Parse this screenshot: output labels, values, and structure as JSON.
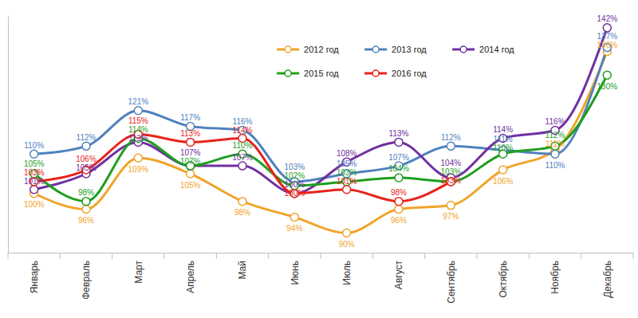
{
  "chart_data": {
    "type": "line",
    "categories": [
      "Январь",
      "Февраль",
      "Март",
      "Апрель",
      "Май",
      "Июнь",
      "Июль",
      "Август",
      "Сентябрь",
      "Октябрь",
      "Ноябрь",
      "Декабрь"
    ],
    "series": [
      {
        "name": "2012 год",
        "color": "#f0a42a",
        "values": [
          100,
          96,
          109,
          105,
          98,
          94,
          90,
          96,
          97,
          106,
          111,
          136
        ],
        "value_labels": [
          "100%",
          "96%",
          "109%",
          "105%",
          "98%",
          "94%",
          "90%",
          "96%",
          "97%",
          "106%",
          "111%",
          "136%"
        ]
      },
      {
        "name": "2013 год",
        "color": "#4f81bd",
        "values": [
          110,
          112,
          121,
          117,
          116,
          103,
          105,
          107,
          112,
          111,
          110,
          137
        ],
        "value_labels": [
          "110%",
          "112%",
          "121%",
          "117%",
          "116%",
          "103%",
          "105%",
          "107%",
          "112%",
          "111%",
          "110%",
          "137%"
        ]
      },
      {
        "name": "2014 год",
        "color": "#7030a0",
        "values": [
          101,
          105,
          113,
          107,
          107,
          100,
          108,
          113,
          104,
          114,
          116,
          142
        ],
        "value_labels": [
          "101%",
          "105%",
          "113%",
          "107%",
          "107%",
          "100%",
          "108%",
          "113%",
          "104%",
          "114%",
          "116%",
          "142%"
        ]
      },
      {
        "name": "2015 год",
        "color": "#1f9e1f",
        "values": [
          105,
          98,
          114,
          107,
          110,
          102,
          103,
          104,
          103,
          110,
          112,
          130
        ],
        "value_labels": [
          "105%",
          "98%",
          "114%",
          "107%",
          "110%",
          "102%",
          "103%",
          "104%",
          "103%",
          "110%",
          "112%",
          "130%"
        ]
      },
      {
        "name": "2016 год",
        "color": "#e8231b",
        "values": [
          103,
          106,
          115,
          113,
          114,
          100,
          101,
          98,
          103,
          null,
          null,
          null
        ],
        "value_labels": [
          "103%",
          "106%",
          "115%",
          "113%",
          "114%",
          "100%",
          "101%",
          "98%",
          "103%",
          null,
          null,
          null
        ]
      }
    ],
    "ylim": [
      85,
      145
    ],
    "grid": false,
    "legend": "top",
    "data_labels": true,
    "tick_labels": "x",
    "marker": "circle",
    "line_style": "solid"
  }
}
